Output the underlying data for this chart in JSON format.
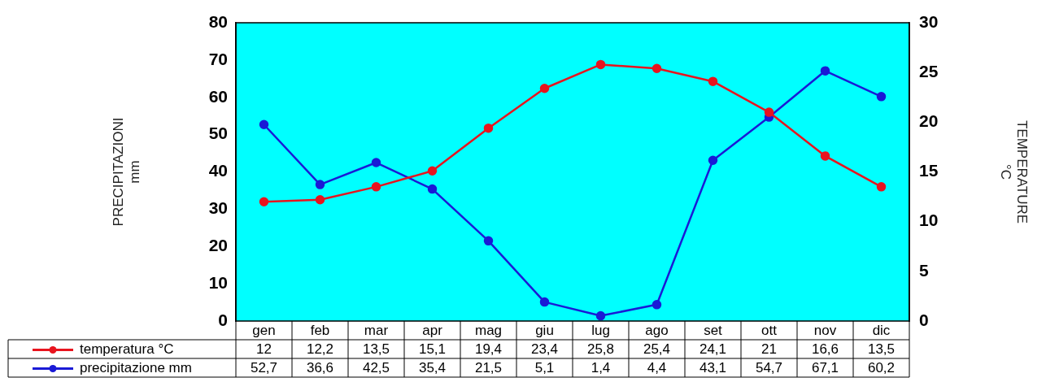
{
  "chart_data": {
    "type": "line",
    "categories": [
      "gen",
      "feb",
      "mar",
      "apr",
      "mag",
      "giu",
      "lug",
      "ago",
      "set",
      "ott",
      "nov",
      "dic"
    ],
    "ylabel": "PRECIPITAZIONI\nmm",
    "y2label": "TEMPERATURE\n°C",
    "ylim": [
      0,
      80
    ],
    "yticks": [
      0,
      10,
      20,
      30,
      40,
      50,
      60,
      70,
      80
    ],
    "y2lim": [
      0,
      30
    ],
    "y2ticks": [
      0,
      5,
      10,
      15,
      20,
      25,
      30
    ],
    "grid": false,
    "legend": "bottom left",
    "marker": "circle",
    "line_style": "solid",
    "series": [
      {
        "name": "temperatura °C",
        "color": "#e8141e",
        "axis": "y2",
        "values": [
          12,
          12.2,
          13.5,
          15.1,
          19.4,
          23.4,
          25.8,
          25.4,
          24.1,
          21,
          16.6,
          13.5
        ],
        "value_labels": [
          "12",
          "12,2",
          "13,5",
          "15,1",
          "19,4",
          "23,4",
          "25,8",
          "25,4",
          "24,1",
          "21",
          "16,6",
          "13,5"
        ]
      },
      {
        "name": "precipitazione mm",
        "color": "#1a1ad6",
        "axis": "y",
        "values": [
          52.7,
          36.6,
          42.5,
          35.4,
          21.5,
          5.1,
          1.4,
          4.4,
          43.1,
          54.7,
          67.1,
          60.2
        ],
        "value_labels": [
          "52,7",
          "36,6",
          "42,5",
          "35,4",
          "21,5",
          "5,1",
          "1,4",
          "4,4",
          "43,1",
          "54,7",
          "67,1",
          "60,2"
        ]
      }
    ]
  }
}
